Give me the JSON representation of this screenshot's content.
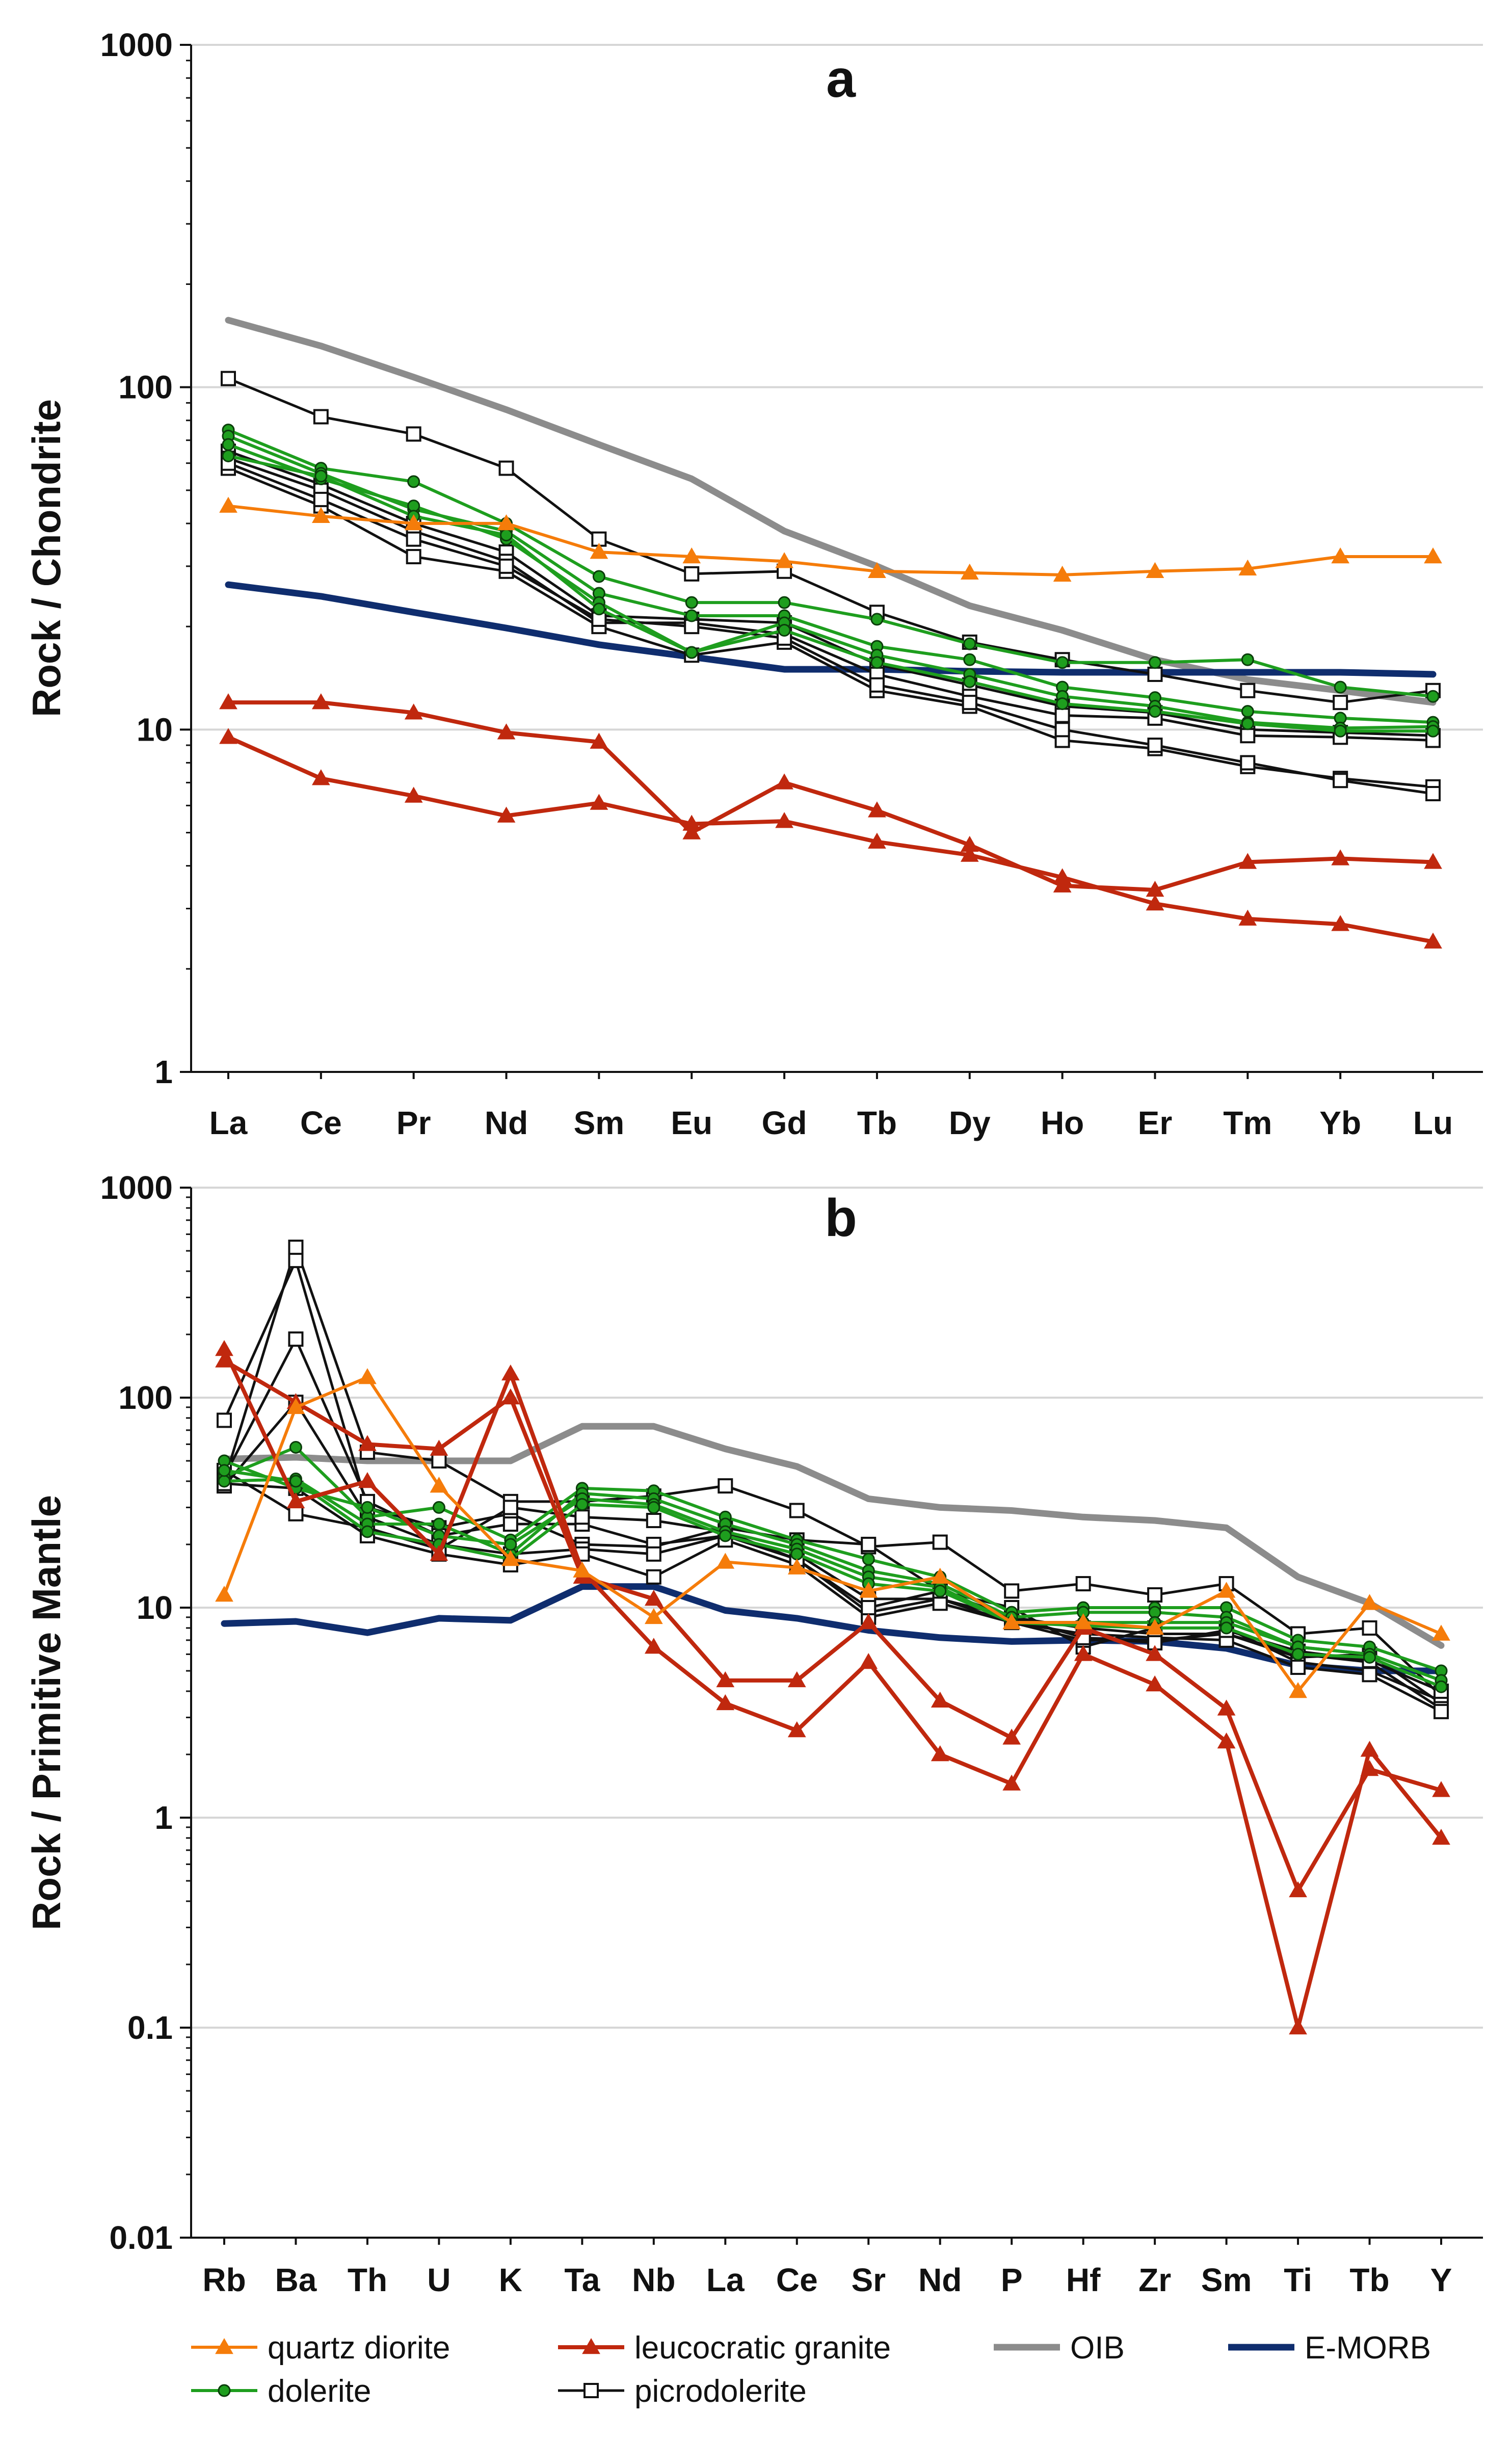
{
  "colors": {
    "quartz_diorite": "#F57C0A",
    "leucocratic_granite": "#C0280E",
    "dolerite": "#1E9E1E",
    "picrodolerite": "#111111",
    "oib": "#8C8C8C",
    "emorb": "#0F2D6E",
    "dolerite_marker": "#1E9E1E",
    "grid": "#D6D6D6"
  },
  "legend": [
    {
      "key": "quartz_diorite",
      "label": "quartz diorite",
      "marker": "triangle"
    },
    {
      "key": "leucocratic_granite",
      "label": "leucocratic granite",
      "marker": "triangle"
    },
    {
      "key": "oib",
      "label": "OIB",
      "marker": "none"
    },
    {
      "key": "emorb",
      "label": "E-MORB",
      "marker": "none"
    },
    {
      "key": "dolerite",
      "label": "dolerite",
      "marker": "circle"
    },
    {
      "key": "picrodolerite",
      "label": "picrodolerite",
      "marker": "square"
    }
  ],
  "chart_data": [
    {
      "type": "line",
      "panel": "a",
      "title": "a",
      "xlabel": "",
      "ylabel": "Rock / Chondrite",
      "yscale": "log",
      "ylim": [
        1,
        1000
      ],
      "yticks": [
        1,
        10,
        100,
        1000
      ],
      "ytick_labels": [
        "1",
        "10",
        "100",
        "1000"
      ],
      "categories": [
        "La",
        "Ce",
        "Pr",
        "Nd",
        "Sm",
        "Eu",
        "Gd",
        "Tb",
        "Dy",
        "Ho",
        "Er",
        "Tm",
        "Yb",
        "Lu"
      ],
      "series": [
        {
          "name": "OIB",
          "group": "oib",
          "values": [
            157,
            132,
            107,
            86,
            68,
            54,
            38,
            30,
            23,
            19.5,
            16,
            14,
            13,
            12
          ]
        },
        {
          "name": "E-MORB",
          "group": "emorb",
          "values": [
            26.5,
            24.5,
            22,
            19.8,
            17.7,
            16.3,
            15,
            15,
            14.8,
            14.7,
            14.7,
            14.7,
            14.7,
            14.5
          ]
        },
        {
          "name": "quartz diorite",
          "group": "quartz_diorite",
          "values": [
            45,
            42,
            40,
            40,
            33,
            32,
            31,
            29,
            28.7,
            28.3,
            29,
            29.5,
            32,
            32
          ]
        },
        {
          "name": "leucocratic granite 1",
          "group": "leucocratic_granite",
          "values": [
            12,
            12,
            11.2,
            9.8,
            9.2,
            5,
            7,
            5.8,
            4.6,
            3.5,
            3.4,
            4.1,
            4.2,
            4.1
          ]
        },
        {
          "name": "leucocratic granite 2",
          "group": "leucocratic_granite",
          "values": [
            9.5,
            7.2,
            6.4,
            5.6,
            6.1,
            5.3,
            5.4,
            4.7,
            4.3,
            3.7,
            3.1,
            2.8,
            2.7,
            2.4
          ]
        },
        {
          "name": "dolerite 1",
          "group": "dolerite",
          "values": [
            75,
            58,
            53,
            40,
            28,
            23.5,
            23.5,
            21,
            17.8,
            15.7,
            15.7,
            16,
            13.3,
            12.5
          ]
        },
        {
          "name": "dolerite 2",
          "group": "dolerite",
          "values": [
            72,
            56,
            44,
            38,
            25,
            21.5,
            21.5,
            17.5,
            16,
            13.3,
            12.4,
            11.3,
            10.8,
            10.5
          ]
        },
        {
          "name": "dolerite 3",
          "group": "dolerite",
          "values": [
            68,
            54,
            45,
            36,
            23.5,
            16.8,
            20.5,
            16.5,
            14.5,
            12.5,
            11.7,
            10.5,
            10.1,
            10.2
          ]
        },
        {
          "name": "dolerite 4",
          "group": "dolerite",
          "values": [
            63,
            55,
            42,
            37,
            22.5,
            16.8,
            19.5,
            15.7,
            13.8,
            11.9,
            11.3,
            10.4,
            9.9,
            9.9
          ]
        },
        {
          "name": "picrodolerite 1",
          "group": "picrodolerite",
          "values": [
            106,
            82,
            73,
            58,
            36,
            28.5,
            29,
            22,
            18,
            16,
            14.5,
            13,
            12,
            13
          ]
        },
        {
          "name": "picrodolerite 2",
          "group": "picrodolerite",
          "values": [
            65,
            52,
            40,
            33,
            21.5,
            21,
            20.5,
            15.5,
            13.5,
            11.7,
            11.2,
            10,
            9.8,
            9.6
          ]
        },
        {
          "name": "picrodolerite 3",
          "group": "picrodolerite",
          "values": [
            62,
            50,
            38,
            31,
            20.5,
            20.5,
            19,
            14.5,
            12.5,
            11,
            10.8,
            9.6,
            9.5,
            9.3
          ]
        },
        {
          "name": "picrodolerite 4",
          "group": "picrodolerite",
          "values": [
            58,
            45,
            32,
            29,
            20,
            16.5,
            18,
            13,
            11.7,
            9.3,
            8.8,
            7.8,
            7.2,
            6.8
          ]
        },
        {
          "name": "picrodolerite 5",
          "group": "picrodolerite",
          "values": [
            60,
            47,
            36,
            30,
            21,
            20,
            18.5,
            13.5,
            12,
            10,
            9,
            8,
            7.1,
            6.5
          ]
        }
      ]
    },
    {
      "type": "line",
      "panel": "b",
      "title": "b",
      "xlabel": "",
      "ylabel": "Rock / Primitive Mantle",
      "yscale": "log",
      "ylim": [
        0.01,
        1000
      ],
      "yticks": [
        0.01,
        0.1,
        1,
        10,
        100,
        1000
      ],
      "ytick_labels": [
        "0.01",
        "0.1",
        "1",
        "10",
        "100",
        "1000"
      ],
      "categories": [
        "Rb",
        "Ba",
        "Th",
        "U",
        "K",
        "Ta",
        "Nb",
        "La",
        "Ce",
        "Sr",
        "Nd",
        "P",
        "Hf",
        "Zr",
        "Sm",
        "Ti",
        "Tb",
        "Y"
      ],
      "series": [
        {
          "name": "OIB",
          "group": "oib",
          "values": [
            51,
            52,
            50,
            50,
            50,
            73,
            73,
            57,
            47,
            33,
            30,
            29,
            27,
            26,
            24,
            14,
            10.5,
            6.6
          ]
        },
        {
          "name": "E-MORB",
          "group": "emorb",
          "values": [
            8.4,
            8.6,
            7.6,
            8.9,
            8.7,
            12.6,
            12.6,
            9.7,
            8.9,
            7.8,
            7.2,
            6.9,
            7,
            6.9,
            6.4,
            5.3,
            5,
            5
          ]
        },
        {
          "name": "quartz diorite",
          "group": "quartz_diorite",
          "values": [
            11.5,
            90,
            125,
            38,
            17,
            15,
            9,
            16.5,
            15.5,
            12,
            14,
            8.5,
            8.5,
            8,
            12,
            4,
            10.5,
            7.5
          ]
        },
        {
          "name": "leucocratic granite 1",
          "group": "leucocratic_granite",
          "values": [
            170,
            32,
            40,
            18,
            130,
            15,
            6.5,
            3.5,
            2.6,
            5.5,
            2,
            1.45,
            6,
            4.3,
            2.3,
            0.1,
            2.1,
            0.8
          ]
        },
        {
          "name": "leucocratic granite 2",
          "group": "leucocratic_granite",
          "values": [
            150,
            95,
            60,
            57,
            100,
            14,
            11,
            4.5,
            4.5,
            8.5,
            3.6,
            2.4,
            8,
            6,
            3.3,
            0.45,
            1.7,
            1.35
          ]
        },
        {
          "name": "dolerite 1",
          "group": "dolerite",
          "values": [
            42,
            58,
            27,
            30,
            21,
            37,
            36,
            27,
            21,
            17,
            14,
            9.5,
            10,
            10,
            10,
            7,
            6.5,
            5
          ]
        },
        {
          "name": "dolerite 2",
          "group": "dolerite",
          "values": [
            40,
            41,
            25,
            25,
            18,
            35,
            33,
            25,
            20,
            15,
            13,
            9,
            9.5,
            9.5,
            9,
            6.5,
            6,
            4.5
          ]
        },
        {
          "name": "dolerite 3",
          "group": "dolerite",
          "values": [
            50,
            37,
            30,
            22,
            20,
            33,
            31,
            23,
            19,
            14,
            12.5,
            8.5,
            8.5,
            8.5,
            8.5,
            6.5,
            6,
            4.5
          ]
        },
        {
          "name": "dolerite 4",
          "group": "dolerite",
          "values": [
            45,
            40,
            23,
            20,
            17,
            31,
            30,
            22,
            18,
            13,
            12,
            8.5,
            8.2,
            8,
            8,
            6,
            5.8,
            4.2
          ]
        },
        {
          "name": "picrodolerite 1",
          "group": "picrodolerite",
          "values": [
            40,
            520,
            55,
            50,
            32,
            32,
            34,
            38,
            29,
            19.5,
            20.5,
            12,
            13,
            11.5,
            13,
            7.5,
            8,
            3.8
          ]
        },
        {
          "name": "picrodolerite 2",
          "group": "picrodolerite",
          "values": [
            78,
            450,
            30,
            24,
            28,
            20,
            19.5,
            24,
            21,
            20,
            12,
            10,
            6.5,
            8,
            8,
            5.5,
            5,
            3.6
          ]
        },
        {
          "name": "picrodolerite 3",
          "group": "picrodolerite",
          "values": [
            42,
            190,
            32,
            22,
            25,
            25,
            20,
            22,
            18,
            11,
            11,
            9,
            8,
            7.5,
            7.5,
            5.8,
            6,
            3.5
          ]
        },
        {
          "name": "picrodolerite 4",
          "group": "picrodolerite",
          "values": [
            38,
            95,
            27,
            20,
            18,
            19,
            18,
            22,
            17,
            9.5,
            11,
            8.5,
            7,
            7,
            7.5,
            6,
            5.5,
            3.3
          ]
        },
        {
          "name": "picrodolerite 5",
          "group": "picrodolerite",
          "values": [
            39,
            37,
            22,
            18,
            16,
            18,
            14,
            21,
            16,
            9,
            10.5,
            8.5,
            7.5,
            7.2,
            7,
            5.2,
            4.8,
            3.2
          ]
        },
        {
          "name": "picrodolerite 6",
          "group": "picrodolerite",
          "values": [
            45,
            28,
            24,
            19,
            30,
            27,
            26,
            23,
            17,
            10,
            12,
            9,
            7.2,
            6.8,
            7.8,
            6.2,
            5.6,
            4
          ]
        }
      ]
    }
  ]
}
